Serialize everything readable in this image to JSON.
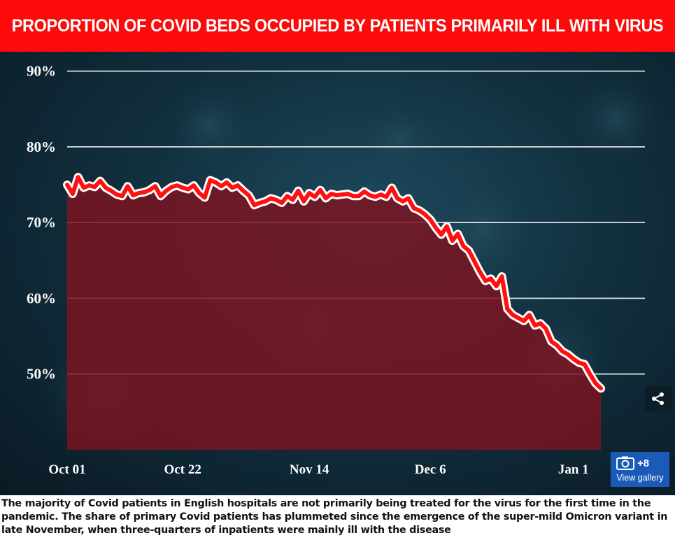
{
  "chart_data": {
    "type": "area",
    "title": "PROPORTION OF COVID BEDS OCCUPIED BY PATIENTS PRIMARILY ILL WITH VIRUS",
    "xlabel": "",
    "ylabel": "",
    "y_unit": "%",
    "ylim": [
      40,
      92
    ],
    "yticks": [
      50,
      60,
      70,
      80,
      90
    ],
    "ytick_labels": [
      "50%",
      "60%",
      "70%",
      "80%",
      "90%"
    ],
    "x_range": [
      "2021-10-01",
      "2022-01-14"
    ],
    "xticks": [
      {
        "date": "2021-10-01",
        "label": "Oct 01"
      },
      {
        "date": "2021-10-22",
        "label": "Oct 22"
      },
      {
        "date": "2021-11-14",
        "label": "Nov 14"
      },
      {
        "date": "2021-12-06",
        "label": "Dec 6"
      },
      {
        "date": "2022-01-01",
        "label": "Jan 1"
      }
    ],
    "grid": true,
    "legend": "none",
    "series": [
      {
        "line_color": "#ff1111",
        "fill_color": "#7a1420",
        "points": [
          [
            "2021-10-01",
            75.0
          ],
          [
            "2021-10-02",
            73.8
          ],
          [
            "2021-10-03",
            76.0
          ],
          [
            "2021-10-04",
            74.6
          ],
          [
            "2021-10-05",
            74.9
          ],
          [
            "2021-10-06",
            74.7
          ],
          [
            "2021-10-07",
            75.5
          ],
          [
            "2021-10-08",
            74.6
          ],
          [
            "2021-10-09",
            74.2
          ],
          [
            "2021-10-10",
            73.7
          ],
          [
            "2021-10-11",
            73.5
          ],
          [
            "2021-10-12",
            74.8
          ],
          [
            "2021-10-13",
            73.6
          ],
          [
            "2021-10-14",
            73.9
          ],
          [
            "2021-10-15",
            74.0
          ],
          [
            "2021-10-16",
            74.3
          ],
          [
            "2021-10-17",
            74.8
          ],
          [
            "2021-10-18",
            73.5
          ],
          [
            "2021-10-19",
            74.2
          ],
          [
            "2021-10-20",
            74.7
          ],
          [
            "2021-10-21",
            74.9
          ],
          [
            "2021-10-22",
            74.6
          ],
          [
            "2021-10-23",
            74.4
          ],
          [
            "2021-10-24",
            74.9
          ],
          [
            "2021-10-25",
            73.9
          ],
          [
            "2021-10-26",
            73.3
          ],
          [
            "2021-10-27",
            75.6
          ],
          [
            "2021-10-28",
            75.3
          ],
          [
            "2021-10-29",
            74.8
          ],
          [
            "2021-10-30",
            75.3
          ],
          [
            "2021-10-31",
            74.6
          ],
          [
            "2021-11-01",
            74.9
          ],
          [
            "2021-11-02",
            74.2
          ],
          [
            "2021-11-03",
            73.6
          ],
          [
            "2021-11-04",
            72.3
          ],
          [
            "2021-11-05",
            72.6
          ],
          [
            "2021-11-06",
            72.8
          ],
          [
            "2021-11-07",
            73.2
          ],
          [
            "2021-11-08",
            73.0
          ],
          [
            "2021-11-09",
            72.6
          ],
          [
            "2021-11-10",
            73.5
          ],
          [
            "2021-11-11",
            73.0
          ],
          [
            "2021-11-12",
            74.2
          ],
          [
            "2021-11-13",
            72.8
          ],
          [
            "2021-11-14",
            73.9
          ],
          [
            "2021-11-15",
            73.4
          ],
          [
            "2021-11-16",
            74.3
          ],
          [
            "2021-11-17",
            73.2
          ],
          [
            "2021-11-18",
            73.8
          ],
          [
            "2021-11-19",
            73.6
          ],
          [
            "2021-11-20",
            73.7
          ],
          [
            "2021-11-21",
            73.8
          ],
          [
            "2021-11-22",
            73.5
          ],
          [
            "2021-11-23",
            73.5
          ],
          [
            "2021-11-24",
            74.1
          ],
          [
            "2021-11-25",
            73.6
          ],
          [
            "2021-11-26",
            73.4
          ],
          [
            "2021-11-27",
            73.7
          ],
          [
            "2021-11-28",
            73.4
          ],
          [
            "2021-11-29",
            74.6
          ],
          [
            "2021-11-30",
            73.2
          ],
          [
            "2021-12-01",
            72.8
          ],
          [
            "2021-12-02",
            73.2
          ],
          [
            "2021-12-03",
            71.9
          ],
          [
            "2021-12-04",
            71.6
          ],
          [
            "2021-12-05",
            71.1
          ],
          [
            "2021-12-06",
            70.4
          ],
          [
            "2021-12-07",
            69.3
          ],
          [
            "2021-12-08",
            68.4
          ],
          [
            "2021-12-09",
            69.5
          ],
          [
            "2021-12-10",
            67.6
          ],
          [
            "2021-12-11",
            68.5
          ],
          [
            "2021-12-12",
            66.9
          ],
          [
            "2021-12-13",
            66.3
          ],
          [
            "2021-12-14",
            64.9
          ],
          [
            "2021-12-15",
            63.5
          ],
          [
            "2021-12-16",
            62.3
          ],
          [
            "2021-12-17",
            62.6
          ],
          [
            "2021-12-18",
            61.6
          ],
          [
            "2021-12-19",
            62.9
          ],
          [
            "2021-12-20",
            58.6
          ],
          [
            "2021-12-21",
            57.8
          ],
          [
            "2021-12-22",
            57.4
          ],
          [
            "2021-12-23",
            57.0
          ],
          [
            "2021-12-24",
            57.8
          ],
          [
            "2021-12-25",
            56.4
          ],
          [
            "2021-12-26",
            56.7
          ],
          [
            "2021-12-27",
            56.0
          ],
          [
            "2021-12-28",
            54.3
          ],
          [
            "2021-12-29",
            53.8
          ],
          [
            "2021-12-30",
            53.0
          ],
          [
            "2021-12-31",
            52.6
          ],
          [
            "2022-01-01",
            52.0
          ],
          [
            "2022-01-02",
            51.5
          ],
          [
            "2022-01-03",
            51.3
          ],
          [
            "2022-01-04",
            50.0
          ],
          [
            "2022-01-05",
            48.8
          ],
          [
            "2022-01-06",
            48.1
          ]
        ]
      }
    ]
  },
  "caption": "The majority of Covid patients in English hospitals are not primarily being treated for the virus for the first time in the pandemic. The share of primary Covid patients has plummeted since the emergence of the super-mild Omicron variant in late November, when three-quarters of inpatients were mainly ill with the disease",
  "controls": {
    "share_icon": "share-icon",
    "gallery_icon": "camera-icon",
    "gallery_count": "+8",
    "gallery_label": "View gallery"
  },
  "colors": {
    "title_bar": "#ff0a0a",
    "background": "#12303f",
    "gallery_button": "#1a5bb8"
  }
}
